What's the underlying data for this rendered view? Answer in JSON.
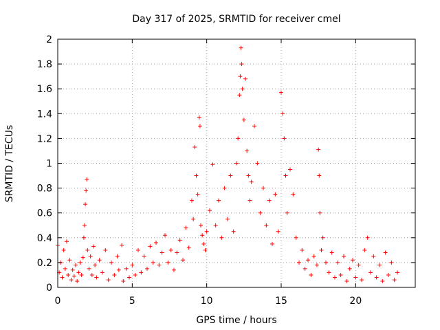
{
  "chart_data": {
    "type": "scatter",
    "title": "Day 317 of 2025, SRMTID for receiver cmel",
    "xlabel": "GPS time / hours",
    "ylabel": "SRMTID / TECUs",
    "xlim": [
      0,
      24
    ],
    "ylim": [
      0,
      2
    ],
    "xticks": [
      0,
      5,
      10,
      15,
      20
    ],
    "xtick_labels": [
      "0",
      "5",
      "10",
      "15",
      "20"
    ],
    "yticks": [
      0,
      0.2,
      0.4,
      0.6,
      0.8,
      1,
      1.2,
      1.4,
      1.6,
      1.8,
      2
    ],
    "ytick_labels": [
      "0",
      "0.2",
      "0.4",
      "0.6",
      "0.8",
      "1",
      "1.2",
      "1.4",
      "1.6",
      "1.8",
      "2"
    ],
    "grid": true,
    "marker": "+",
    "marker_color": "#ff0000",
    "series": [
      {
        "name": "SRMTID",
        "points": [
          [
            0.0,
            0.34
          ],
          [
            0.1,
            0.12
          ],
          [
            0.2,
            0.2
          ],
          [
            0.3,
            0.08
          ],
          [
            0.4,
            0.3
          ],
          [
            0.5,
            0.15
          ],
          [
            0.6,
            0.37
          ],
          [
            0.7,
            0.1
          ],
          [
            0.8,
            0.22
          ],
          [
            0.9,
            0.06
          ],
          [
            1.0,
            0.14
          ],
          [
            1.1,
            0.09
          ],
          [
            1.2,
            0.18
          ],
          [
            1.3,
            0.05
          ],
          [
            1.4,
            0.12
          ],
          [
            1.5,
            0.2
          ],
          [
            1.6,
            0.1
          ],
          [
            1.7,
            0.24
          ],
          [
            1.75,
            0.4
          ],
          [
            1.8,
            0.5
          ],
          [
            1.85,
            0.67
          ],
          [
            1.9,
            0.78
          ],
          [
            1.95,
            0.87
          ],
          [
            2.0,
            0.3
          ],
          [
            2.1,
            0.15
          ],
          [
            2.2,
            0.25
          ],
          [
            2.3,
            0.1
          ],
          [
            2.4,
            0.33
          ],
          [
            2.5,
            0.18
          ],
          [
            2.6,
            0.08
          ],
          [
            2.8,
            0.22
          ],
          [
            3.0,
            0.12
          ],
          [
            3.2,
            0.3
          ],
          [
            3.4,
            0.06
          ],
          [
            3.6,
            0.2
          ],
          [
            3.8,
            0.1
          ],
          [
            4.0,
            0.25
          ],
          [
            4.1,
            0.14
          ],
          [
            4.3,
            0.34
          ],
          [
            4.4,
            0.05
          ],
          [
            4.6,
            0.15
          ],
          [
            4.8,
            0.08
          ],
          [
            5.0,
            0.18
          ],
          [
            5.2,
            0.1
          ],
          [
            5.4,
            0.3
          ],
          [
            5.6,
            0.12
          ],
          [
            5.8,
            0.25
          ],
          [
            6.0,
            0.15
          ],
          [
            6.2,
            0.33
          ],
          [
            6.4,
            0.2
          ],
          [
            6.6,
            0.36
          ],
          [
            6.8,
            0.18
          ],
          [
            7.0,
            0.28
          ],
          [
            7.2,
            0.42
          ],
          [
            7.4,
            0.2
          ],
          [
            7.6,
            0.3
          ],
          [
            7.8,
            0.14
          ],
          [
            8.0,
            0.28
          ],
          [
            8.2,
            0.38
          ],
          [
            8.4,
            0.22
          ],
          [
            8.6,
            0.48
          ],
          [
            8.8,
            0.32
          ],
          [
            9.0,
            0.7
          ],
          [
            9.1,
            0.55
          ],
          [
            9.2,
            1.13
          ],
          [
            9.3,
            0.9
          ],
          [
            9.4,
            0.75
          ],
          [
            9.5,
            1.37
          ],
          [
            9.55,
            1.3
          ],
          [
            9.6,
            0.5
          ],
          [
            9.7,
            0.42
          ],
          [
            9.8,
            0.35
          ],
          [
            9.9,
            0.3
          ],
          [
            10.0,
            0.45
          ],
          [
            10.2,
            0.62
          ],
          [
            10.4,
            0.99
          ],
          [
            10.6,
            0.5
          ],
          [
            10.8,
            0.7
          ],
          [
            11.0,
            0.4
          ],
          [
            11.2,
            0.8
          ],
          [
            11.4,
            0.55
          ],
          [
            11.6,
            0.9
          ],
          [
            11.8,
            0.45
          ],
          [
            12.0,
            1.0
          ],
          [
            12.1,
            1.2
          ],
          [
            12.2,
            1.55
          ],
          [
            12.25,
            1.7
          ],
          [
            12.3,
            1.93
          ],
          [
            12.35,
            1.8
          ],
          [
            12.4,
            1.6
          ],
          [
            12.5,
            1.35
          ],
          [
            12.6,
            1.68
          ],
          [
            12.7,
            1.1
          ],
          [
            12.8,
            0.9
          ],
          [
            12.9,
            0.7
          ],
          [
            13.0,
            0.85
          ],
          [
            13.2,
            1.3
          ],
          [
            13.4,
            1.0
          ],
          [
            13.6,
            0.6
          ],
          [
            13.8,
            0.8
          ],
          [
            14.0,
            0.5
          ],
          [
            14.2,
            0.7
          ],
          [
            14.4,
            0.35
          ],
          [
            14.6,
            0.75
          ],
          [
            14.8,
            0.45
          ],
          [
            15.0,
            1.57
          ],
          [
            15.1,
            1.4
          ],
          [
            15.2,
            1.2
          ],
          [
            15.3,
            0.9
          ],
          [
            15.4,
            0.6
          ],
          [
            15.6,
            0.95
          ],
          [
            15.8,
            0.75
          ],
          [
            16.0,
            0.4
          ],
          [
            16.2,
            0.2
          ],
          [
            16.4,
            0.3
          ],
          [
            16.6,
            0.15
          ],
          [
            16.8,
            0.22
          ],
          [
            17.0,
            0.1
          ],
          [
            17.2,
            0.25
          ],
          [
            17.4,
            0.18
          ],
          [
            17.5,
            1.11
          ],
          [
            17.55,
            0.9
          ],
          [
            17.6,
            0.6
          ],
          [
            17.7,
            0.3
          ],
          [
            17.8,
            0.4
          ],
          [
            18.0,
            0.2
          ],
          [
            18.2,
            0.12
          ],
          [
            18.4,
            0.28
          ],
          [
            18.6,
            0.08
          ],
          [
            18.8,
            0.2
          ],
          [
            19.0,
            0.1
          ],
          [
            19.2,
            0.25
          ],
          [
            19.4,
            0.05
          ],
          [
            19.6,
            0.15
          ],
          [
            19.8,
            0.22
          ],
          [
            20.0,
            0.08
          ],
          [
            20.2,
            0.18
          ],
          [
            20.4,
            0.06
          ],
          [
            20.6,
            0.3
          ],
          [
            20.8,
            0.4
          ],
          [
            21.0,
            0.12
          ],
          [
            21.2,
            0.25
          ],
          [
            21.4,
            0.08
          ],
          [
            21.6,
            0.18
          ],
          [
            21.8,
            0.05
          ],
          [
            22.0,
            0.28
          ],
          [
            22.2,
            0.1
          ],
          [
            22.4,
            0.2
          ],
          [
            22.6,
            0.06
          ],
          [
            22.8,
            0.12
          ]
        ]
      }
    ]
  }
}
